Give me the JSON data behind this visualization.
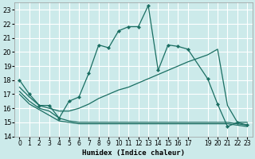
{
  "xlabel": "Humidex (Indice chaleur)",
  "bg_color": "#cceaea",
  "grid_color": "#ffffff",
  "line_color": "#1a6e62",
  "xlim": [
    -0.5,
    23.5
  ],
  "ylim": [
    14,
    23.5
  ],
  "xticks": [
    0,
    1,
    2,
    3,
    4,
    5,
    6,
    7,
    8,
    9,
    10,
    11,
    12,
    13,
    14,
    15,
    16,
    17,
    19,
    20,
    21,
    22,
    23
  ],
  "yticks": [
    14,
    15,
    16,
    17,
    18,
    19,
    20,
    21,
    22,
    23
  ],
  "curve1_x": [
    0,
    1,
    2,
    3,
    4,
    5,
    6,
    7,
    8,
    9,
    10,
    11,
    12,
    13,
    14,
    15,
    16,
    17,
    19,
    20,
    21,
    22,
    23
  ],
  "curve1_y": [
    18,
    17,
    16.2,
    16.2,
    15.3,
    16.5,
    16.8,
    18.5,
    20.5,
    20.3,
    21.5,
    21.8,
    21.8,
    23.3,
    18.7,
    20.5,
    20.4,
    20.2,
    18.1,
    16.3,
    14.7,
    15.0,
    14.8
  ],
  "curve2_x": [
    0,
    1,
    2,
    3,
    4,
    5,
    6,
    7,
    8,
    9,
    10,
    11,
    12,
    13,
    14,
    15,
    16,
    17,
    19,
    20,
    21,
    22,
    23
  ],
  "curve2_y": [
    17.5,
    16.8,
    16.2,
    16.0,
    15.8,
    15.8,
    16.0,
    16.3,
    16.7,
    17.0,
    17.3,
    17.5,
    17.8,
    18.1,
    18.4,
    18.7,
    19.0,
    19.3,
    19.8,
    20.2,
    16.2,
    15.0,
    15.0
  ],
  "curve3_x": [
    0,
    1,
    2,
    3,
    4,
    5,
    6,
    7,
    8,
    9,
    10,
    11,
    12,
    13,
    14,
    15,
    16,
    17,
    19,
    20,
    21,
    22,
    23
  ],
  "curve3_y": [
    17.2,
    16.5,
    16.0,
    15.8,
    15.3,
    15.1,
    15.0,
    15.0,
    15.0,
    15.0,
    15.0,
    15.0,
    15.0,
    15.0,
    15.0,
    15.0,
    15.0,
    15.0,
    15.0,
    15.0,
    15.0,
    14.9,
    14.8
  ],
  "curve4_x": [
    0,
    1,
    2,
    3,
    4,
    5,
    6,
    7,
    8,
    9,
    10,
    11,
    12,
    13,
    14,
    15,
    16,
    17,
    19,
    20,
    21,
    22,
    23
  ],
  "curve4_y": [
    17.0,
    16.3,
    15.9,
    15.5,
    15.1,
    15.0,
    14.9,
    14.9,
    14.9,
    14.9,
    14.9,
    14.9,
    14.9,
    14.9,
    14.9,
    14.9,
    14.9,
    14.9,
    14.9,
    14.9,
    14.9,
    14.8,
    14.7
  ]
}
